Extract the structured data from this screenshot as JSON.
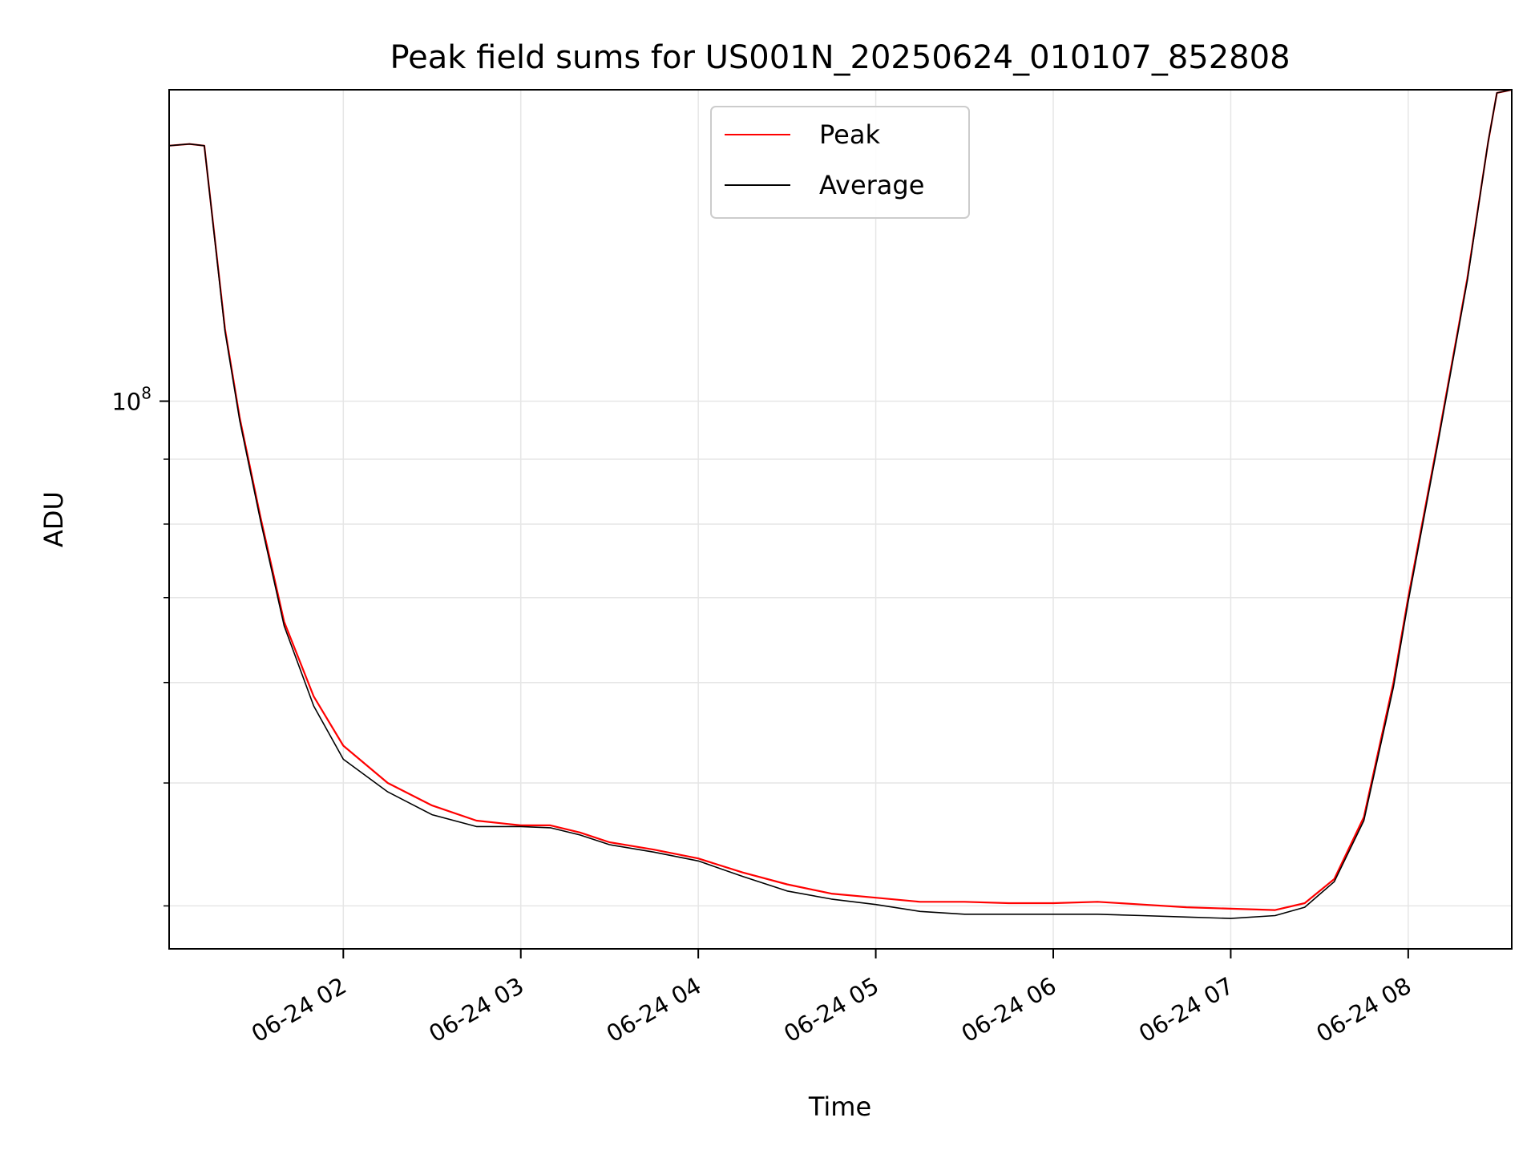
{
  "chart_data": {
    "type": "line",
    "title": "Peak field sums for US001N_20250624_010107_852808",
    "xlabel": "Time",
    "ylabel": "ADU",
    "xscale": "time",
    "yscale": "log",
    "x_range": [
      "2025-06-24 01:01:07",
      "2025-06-24 08:35:00"
    ],
    "ylim": [
      37000000,
      176000000
    ],
    "grid": true,
    "legend_position": "upper-center",
    "x_ticks": [
      {
        "value": "2025-06-24 02:00",
        "label": "06-24 02"
      },
      {
        "value": "2025-06-24 03:00",
        "label": "06-24 03"
      },
      {
        "value": "2025-06-24 04:00",
        "label": "06-24 04"
      },
      {
        "value": "2025-06-24 05:00",
        "label": "06-24 05"
      },
      {
        "value": "2025-06-24 06:00",
        "label": "06-24 06"
      },
      {
        "value": "2025-06-24 07:00",
        "label": "06-24 07"
      },
      {
        "value": "2025-06-24 08:00",
        "label": "06-24 08"
      }
    ],
    "y_major_ticks": [
      {
        "value": 100000000,
        "label_base": "10",
        "label_exp": "8"
      }
    ],
    "y_minor_ticks": [
      40000000,
      50000000,
      60000000,
      70000000,
      80000000,
      90000000
    ],
    "series": [
      {
        "name": "Peak",
        "color": "#ff0000",
        "x": [
          "2025-06-24 01:01",
          "2025-06-24 01:08",
          "2025-06-24 01:13",
          "2025-06-24 01:20",
          "2025-06-24 01:25",
          "2025-06-24 01:32",
          "2025-06-24 01:40",
          "2025-06-24 01:50",
          "2025-06-24 02:00",
          "2025-06-24 02:15",
          "2025-06-24 02:30",
          "2025-06-24 02:45",
          "2025-06-24 03:00",
          "2025-06-24 03:10",
          "2025-06-24 03:20",
          "2025-06-24 03:30",
          "2025-06-24 03:45",
          "2025-06-24 04:00",
          "2025-06-24 04:15",
          "2025-06-24 04:30",
          "2025-06-24 04:45",
          "2025-06-24 05:00",
          "2025-06-24 05:15",
          "2025-06-24 05:30",
          "2025-06-24 05:45",
          "2025-06-24 06:00",
          "2025-06-24 06:15",
          "2025-06-24 06:30",
          "2025-06-24 06:45",
          "2025-06-24 07:00",
          "2025-06-24 07:15",
          "2025-06-24 07:25",
          "2025-06-24 07:35",
          "2025-06-24 07:45",
          "2025-06-24 07:55",
          "2025-06-24 08:00",
          "2025-06-24 08:10",
          "2025-06-24 08:20",
          "2025-06-24 08:27",
          "2025-06-24 08:30",
          "2025-06-24 08:35"
        ],
        "values": [
          159000000,
          159500000,
          159000000,
          114000000,
          97000000,
          81000000,
          67000000,
          58500000,
          53500000,
          50000000,
          48000000,
          46700000,
          46300000,
          46300000,
          45700000,
          44900000,
          44300000,
          43600000,
          42500000,
          41600000,
          40900000,
          40600000,
          40300000,
          40300000,
          40200000,
          40200000,
          40300000,
          40100000,
          39900000,
          39800000,
          39700000,
          40200000,
          42000000,
          47000000,
          60000000,
          70000000,
          93000000,
          125000000,
          160000000,
          175000000,
          176000000
        ]
      },
      {
        "name": "Average",
        "color": "#000000",
        "x": [
          "2025-06-24 01:01",
          "2025-06-24 01:08",
          "2025-06-24 01:13",
          "2025-06-24 01:20",
          "2025-06-24 01:25",
          "2025-06-24 01:32",
          "2025-06-24 01:40",
          "2025-06-24 01:50",
          "2025-06-24 02:00",
          "2025-06-24 02:15",
          "2025-06-24 02:30",
          "2025-06-24 02:45",
          "2025-06-24 03:00",
          "2025-06-24 03:10",
          "2025-06-24 03:20",
          "2025-06-24 03:30",
          "2025-06-24 03:45",
          "2025-06-24 04:00",
          "2025-06-24 04:15",
          "2025-06-24 04:30",
          "2025-06-24 04:45",
          "2025-06-24 05:00",
          "2025-06-24 05:15",
          "2025-06-24 05:30",
          "2025-06-24 05:45",
          "2025-06-24 06:00",
          "2025-06-24 06:15",
          "2025-06-24 06:30",
          "2025-06-24 06:45",
          "2025-06-24 07:00",
          "2025-06-24 07:15",
          "2025-06-24 07:25",
          "2025-06-24 07:35",
          "2025-06-24 07:45",
          "2025-06-24 07:55",
          "2025-06-24 08:00",
          "2025-06-24 08:10",
          "2025-06-24 08:20",
          "2025-06-24 08:27",
          "2025-06-24 08:30",
          "2025-06-24 08:35"
        ],
        "values": [
          159000000,
          159500000,
          159000000,
          113500000,
          96500000,
          80500000,
          66500000,
          57500000,
          52200000,
          49200000,
          47200000,
          46200000,
          46200000,
          46100000,
          45500000,
          44700000,
          44100000,
          43400000,
          42200000,
          41100000,
          40500000,
          40100000,
          39600000,
          39400000,
          39400000,
          39400000,
          39400000,
          39300000,
          39200000,
          39100000,
          39300000,
          39900000,
          41800000,
          46700000,
          59500000,
          69500000,
          92500000,
          124500000,
          160000000,
          175000000,
          176000000
        ]
      }
    ]
  }
}
